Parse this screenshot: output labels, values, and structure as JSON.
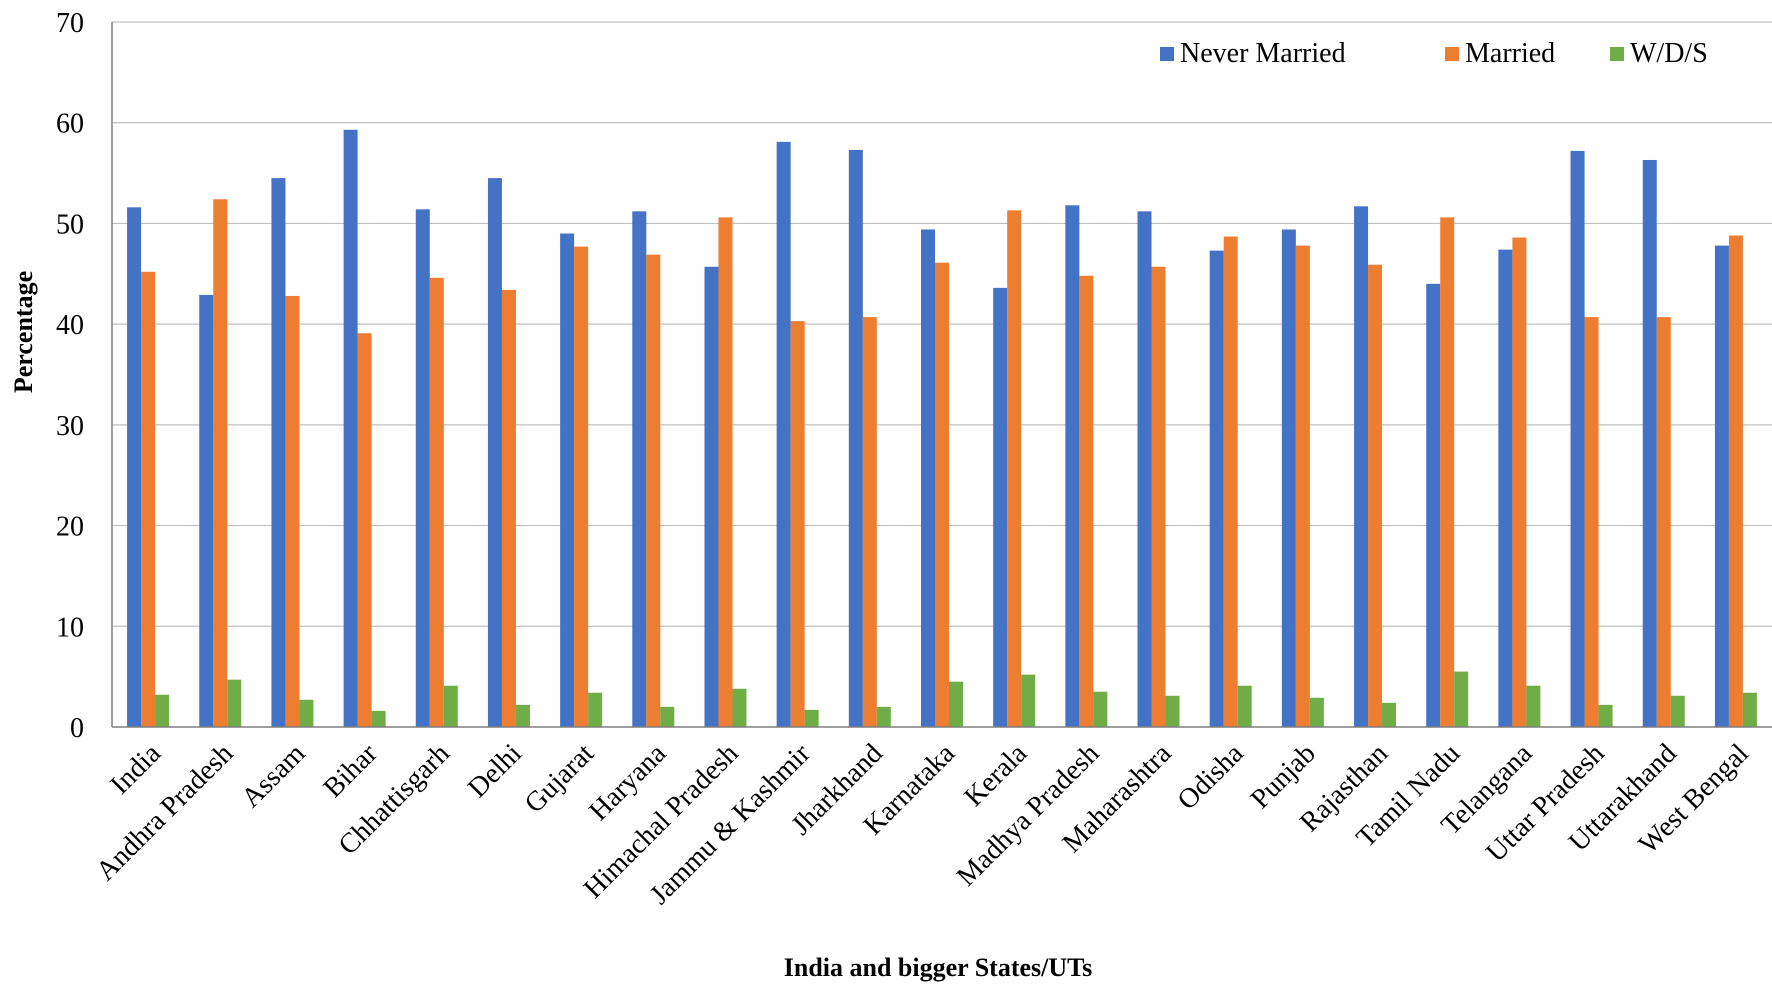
{
  "chart_data": {
    "type": "bar",
    "title": "",
    "xlabel": "India and bigger States/UTs",
    "ylabel": "Percentage",
    "ylim": [
      0,
      70
    ],
    "yticks": [
      0,
      10,
      20,
      30,
      40,
      50,
      60,
      70
    ],
    "grid": true,
    "legend_position": "top-right",
    "categories": [
      "India",
      "Andhra Pradesh",
      "Assam",
      "Bihar",
      "Chhattisgarh",
      "Delhi",
      "Gujarat",
      "Haryana",
      "Himachal Pradesh",
      "Jammu & Kashmir",
      "Jharkhand",
      "Karnataka",
      "Kerala",
      "Madhya Pradesh",
      "Maharashtra",
      "Odisha",
      "Punjab",
      "Rajasthan",
      "Tamil Nadu",
      "Telangana",
      "Uttar Pradesh",
      "Uttarakhand",
      "West Bengal"
    ],
    "series": [
      {
        "name": "Never Married",
        "color": "#4472C4",
        "values": [
          51.6,
          42.9,
          54.5,
          59.3,
          51.4,
          54.5,
          49.0,
          51.2,
          45.7,
          58.1,
          57.3,
          49.4,
          43.6,
          51.8,
          51.2,
          47.3,
          49.4,
          51.7,
          44.0,
          47.4,
          57.2,
          56.3,
          47.8
        ]
      },
      {
        "name": "Married",
        "color": "#ED7D31",
        "values": [
          45.2,
          52.4,
          42.8,
          39.1,
          44.6,
          43.4,
          47.7,
          46.9,
          50.6,
          40.3,
          40.7,
          46.1,
          51.3,
          44.8,
          45.7,
          48.7,
          47.8,
          45.9,
          50.6,
          48.6,
          40.7,
          40.7,
          48.8
        ]
      },
      {
        "name": "W/D/S",
        "color": "#70AD47",
        "values": [
          3.2,
          4.7,
          2.7,
          1.6,
          4.1,
          2.2,
          3.4,
          2.0,
          3.8,
          1.7,
          2.0,
          4.5,
          5.2,
          3.5,
          3.1,
          4.1,
          2.9,
          2.4,
          5.5,
          4.1,
          2.2,
          3.1,
          3.4
        ]
      }
    ]
  }
}
